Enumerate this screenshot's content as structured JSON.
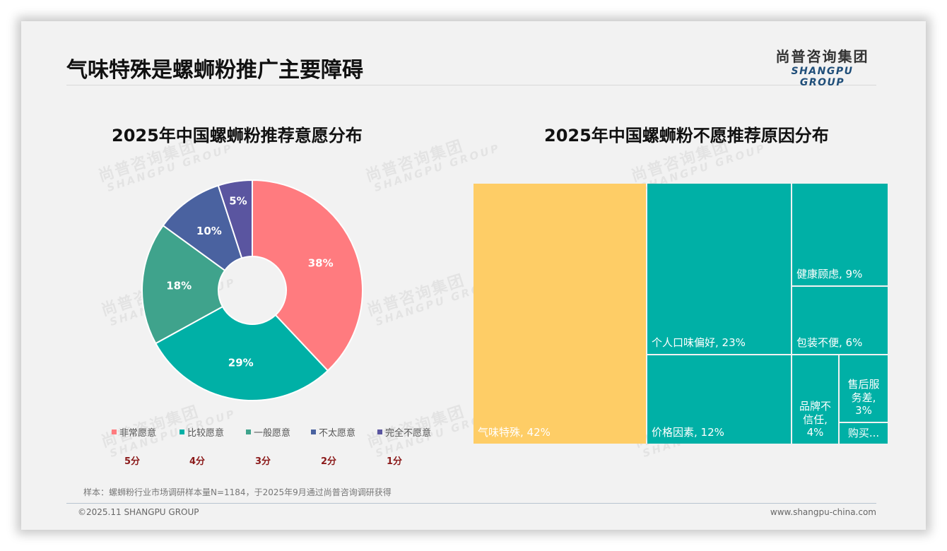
{
  "page": {
    "title": "气味特殊是螺蛳粉推广主要障碍",
    "logo_cn": "尚普咨询集团",
    "logo_en": "SHANGPU GROUP",
    "watermark_cn": "尚普咨询集团",
    "watermark_en": "SHANGPU GROUP",
    "note": "样本：螺蛳粉行业市场调研样本量N=1184，于2025年9月通过尚普咨询调研获得",
    "copyright": "©2025.11 SHANGPU GROUP",
    "website": "www.shangpu-china.com"
  },
  "colors": {
    "very_willing": "#ff7b7f",
    "fairly_willing": "#00b0a6",
    "neutral": "#3fa38c",
    "unwilling": "#4a62a0",
    "very_unwilling": "#5a55a0",
    "treemap_main": "#fecd66",
    "treemap_other": "#00b0a6",
    "score_text": "#8b1a1a"
  },
  "chart_data": [
    {
      "type": "pie",
      "subtype": "donut",
      "title": "2025年中国螺蛳粉推荐意愿分布",
      "categories": [
        "非常愿意",
        "比较愿意",
        "一般愿意",
        "不太愿意",
        "完全不愿意"
      ],
      "values": [
        38,
        29,
        18,
        10,
        5
      ],
      "labels": [
        "38%",
        "29%",
        "18%",
        "10%",
        "5%"
      ],
      "scores": [
        "5分",
        "4分",
        "3分",
        "2分",
        "1分"
      ],
      "unit": "%",
      "legend_position": "bottom"
    },
    {
      "type": "treemap",
      "title": "2025年中国螺蛳粉不愿推荐原因分布",
      "categories": [
        "气味特殊",
        "个人口味偏好",
        "价格因素",
        "健康顾虑",
        "包装不便",
        "品牌不信任",
        "售后服务差",
        "购买渠道不便"
      ],
      "values": [
        42,
        23,
        12,
        9,
        6,
        4,
        3,
        1
      ],
      "labels": [
        "气味特殊, 42%",
        "个人口味偏好, 23%",
        "价格因素, 12%",
        "健康顾虑, 9%",
        "包装不便, 6%",
        "品牌不\n信任,\n4%",
        "售后服\n务差,\n3%",
        "购买..."
      ],
      "unit": "%"
    }
  ]
}
